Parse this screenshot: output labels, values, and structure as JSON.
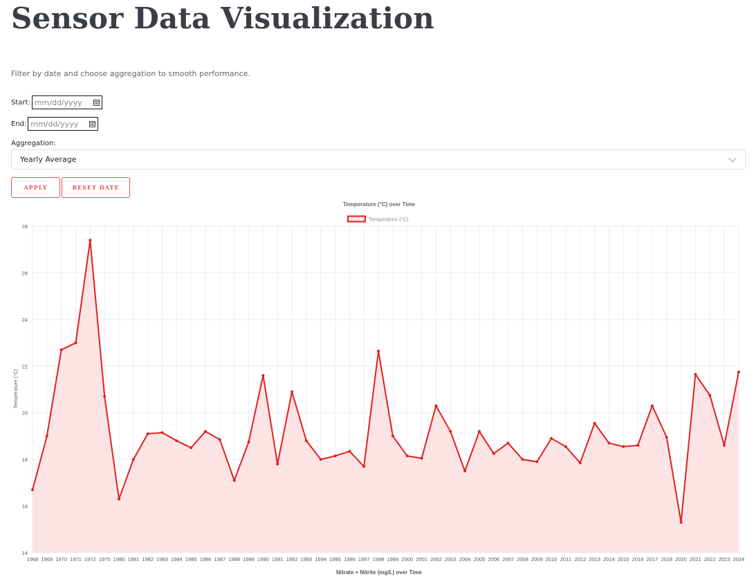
{
  "page": {
    "title": "Sensor Data Visualization",
    "subtitle": "Filter by date and choose aggregation to smooth performance."
  },
  "filters": {
    "start_label": "Start:",
    "start_placeholder": "mm/dd/yyyy",
    "end_label": "End:",
    "end_placeholder": "mm/dd/yyyy",
    "aggregation_label": "Aggregation:",
    "aggregation_value": "Yearly Average",
    "apply_label": "APPLY",
    "reset_label": "RESET DATE"
  },
  "colors": {
    "accent": "#e53935",
    "line": "#e02020",
    "fill": "#fde4e4",
    "grid": "#ececec"
  },
  "chart_data": {
    "type": "line",
    "title": "Temperature (°C) over Time",
    "xlabel": "Nitrate + Nitrite (mg/L) over Time",
    "ylabel": "Temperature (°C)",
    "ylim": [
      14,
      28
    ],
    "yticks": [
      14,
      16,
      18,
      20,
      22,
      24,
      26,
      28
    ],
    "grid": true,
    "legend": "top-center",
    "categories": [
      "1968",
      "1969",
      "1970",
      "1971",
      "1972",
      "1975",
      "1980",
      "1981",
      "1982",
      "1983",
      "1984",
      "1985",
      "1986",
      "1987",
      "1988",
      "1989",
      "1990",
      "1991",
      "1992",
      "1993",
      "1994",
      "1995",
      "1996",
      "1997",
      "1998",
      "1999",
      "2000",
      "2001",
      "2002",
      "2003",
      "2004",
      "2005",
      "2006",
      "2007",
      "2008",
      "2009",
      "2010",
      "2011",
      "2012",
      "2013",
      "2014",
      "2015",
      "2016",
      "2017",
      "2018",
      "2020",
      "2021",
      "2022",
      "2023",
      "2024"
    ],
    "series": [
      {
        "name": "Temperature (°C)",
        "values": [
          16.7,
          19.0,
          22.7,
          23.0,
          27.4,
          20.7,
          16.3,
          18.0,
          19.1,
          19.15,
          18.8,
          18.5,
          19.2,
          18.85,
          17.1,
          18.75,
          21.6,
          17.8,
          20.9,
          18.8,
          18.0,
          18.15,
          18.35,
          17.7,
          22.65,
          19.0,
          18.15,
          18.05,
          20.3,
          19.2,
          17.5,
          19.2,
          18.25,
          18.7,
          18.0,
          17.9,
          18.9,
          18.55,
          17.85,
          19.55,
          18.7,
          18.55,
          18.6,
          20.3,
          18.95,
          15.3,
          21.65,
          20.75,
          18.6,
          21.75
        ]
      }
    ]
  }
}
